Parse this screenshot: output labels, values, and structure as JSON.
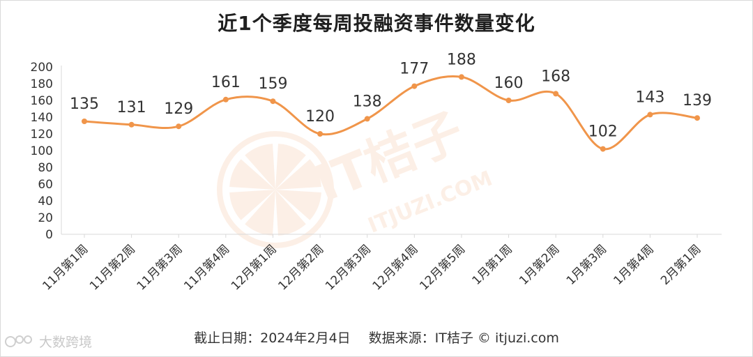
{
  "title": "近1个季度每周投融资事件数量变化",
  "footer": {
    "cutoff": "截止日期：2024年2月4日",
    "source": "数据来源：IT桔子 © itjuzi.com"
  },
  "watermark": {
    "center_text": "IT桔子",
    "center_sub": "ITJUZI.COM",
    "corner_text": "大数跨境"
  },
  "colors": {
    "line": "#f0954a",
    "grid": "#d9d9d9",
    "axis_text": "#333333",
    "watermark": "#fbe3d3"
  },
  "chart_data": {
    "type": "line",
    "title": "近1个季度每周投融资事件数量变化",
    "categories": [
      "11月第1周",
      "11月第2周",
      "11月第3周",
      "11月第4周",
      "12月第1周",
      "12月第2周",
      "12月第3周",
      "12月第4周",
      "12月第5周",
      "1月第1周",
      "1月第2周",
      "1月第3周",
      "1月第4周",
      "2月第1周"
    ],
    "values": [
      135,
      131,
      129,
      161,
      159,
      120,
      138,
      177,
      188,
      160,
      168,
      102,
      143,
      139
    ],
    "yticks": [
      0,
      20,
      40,
      60,
      80,
      100,
      120,
      140,
      160,
      180,
      200
    ],
    "ylim": [
      0,
      200
    ],
    "grid": false,
    "legend": "none",
    "data_labels": true,
    "smooth": true
  }
}
